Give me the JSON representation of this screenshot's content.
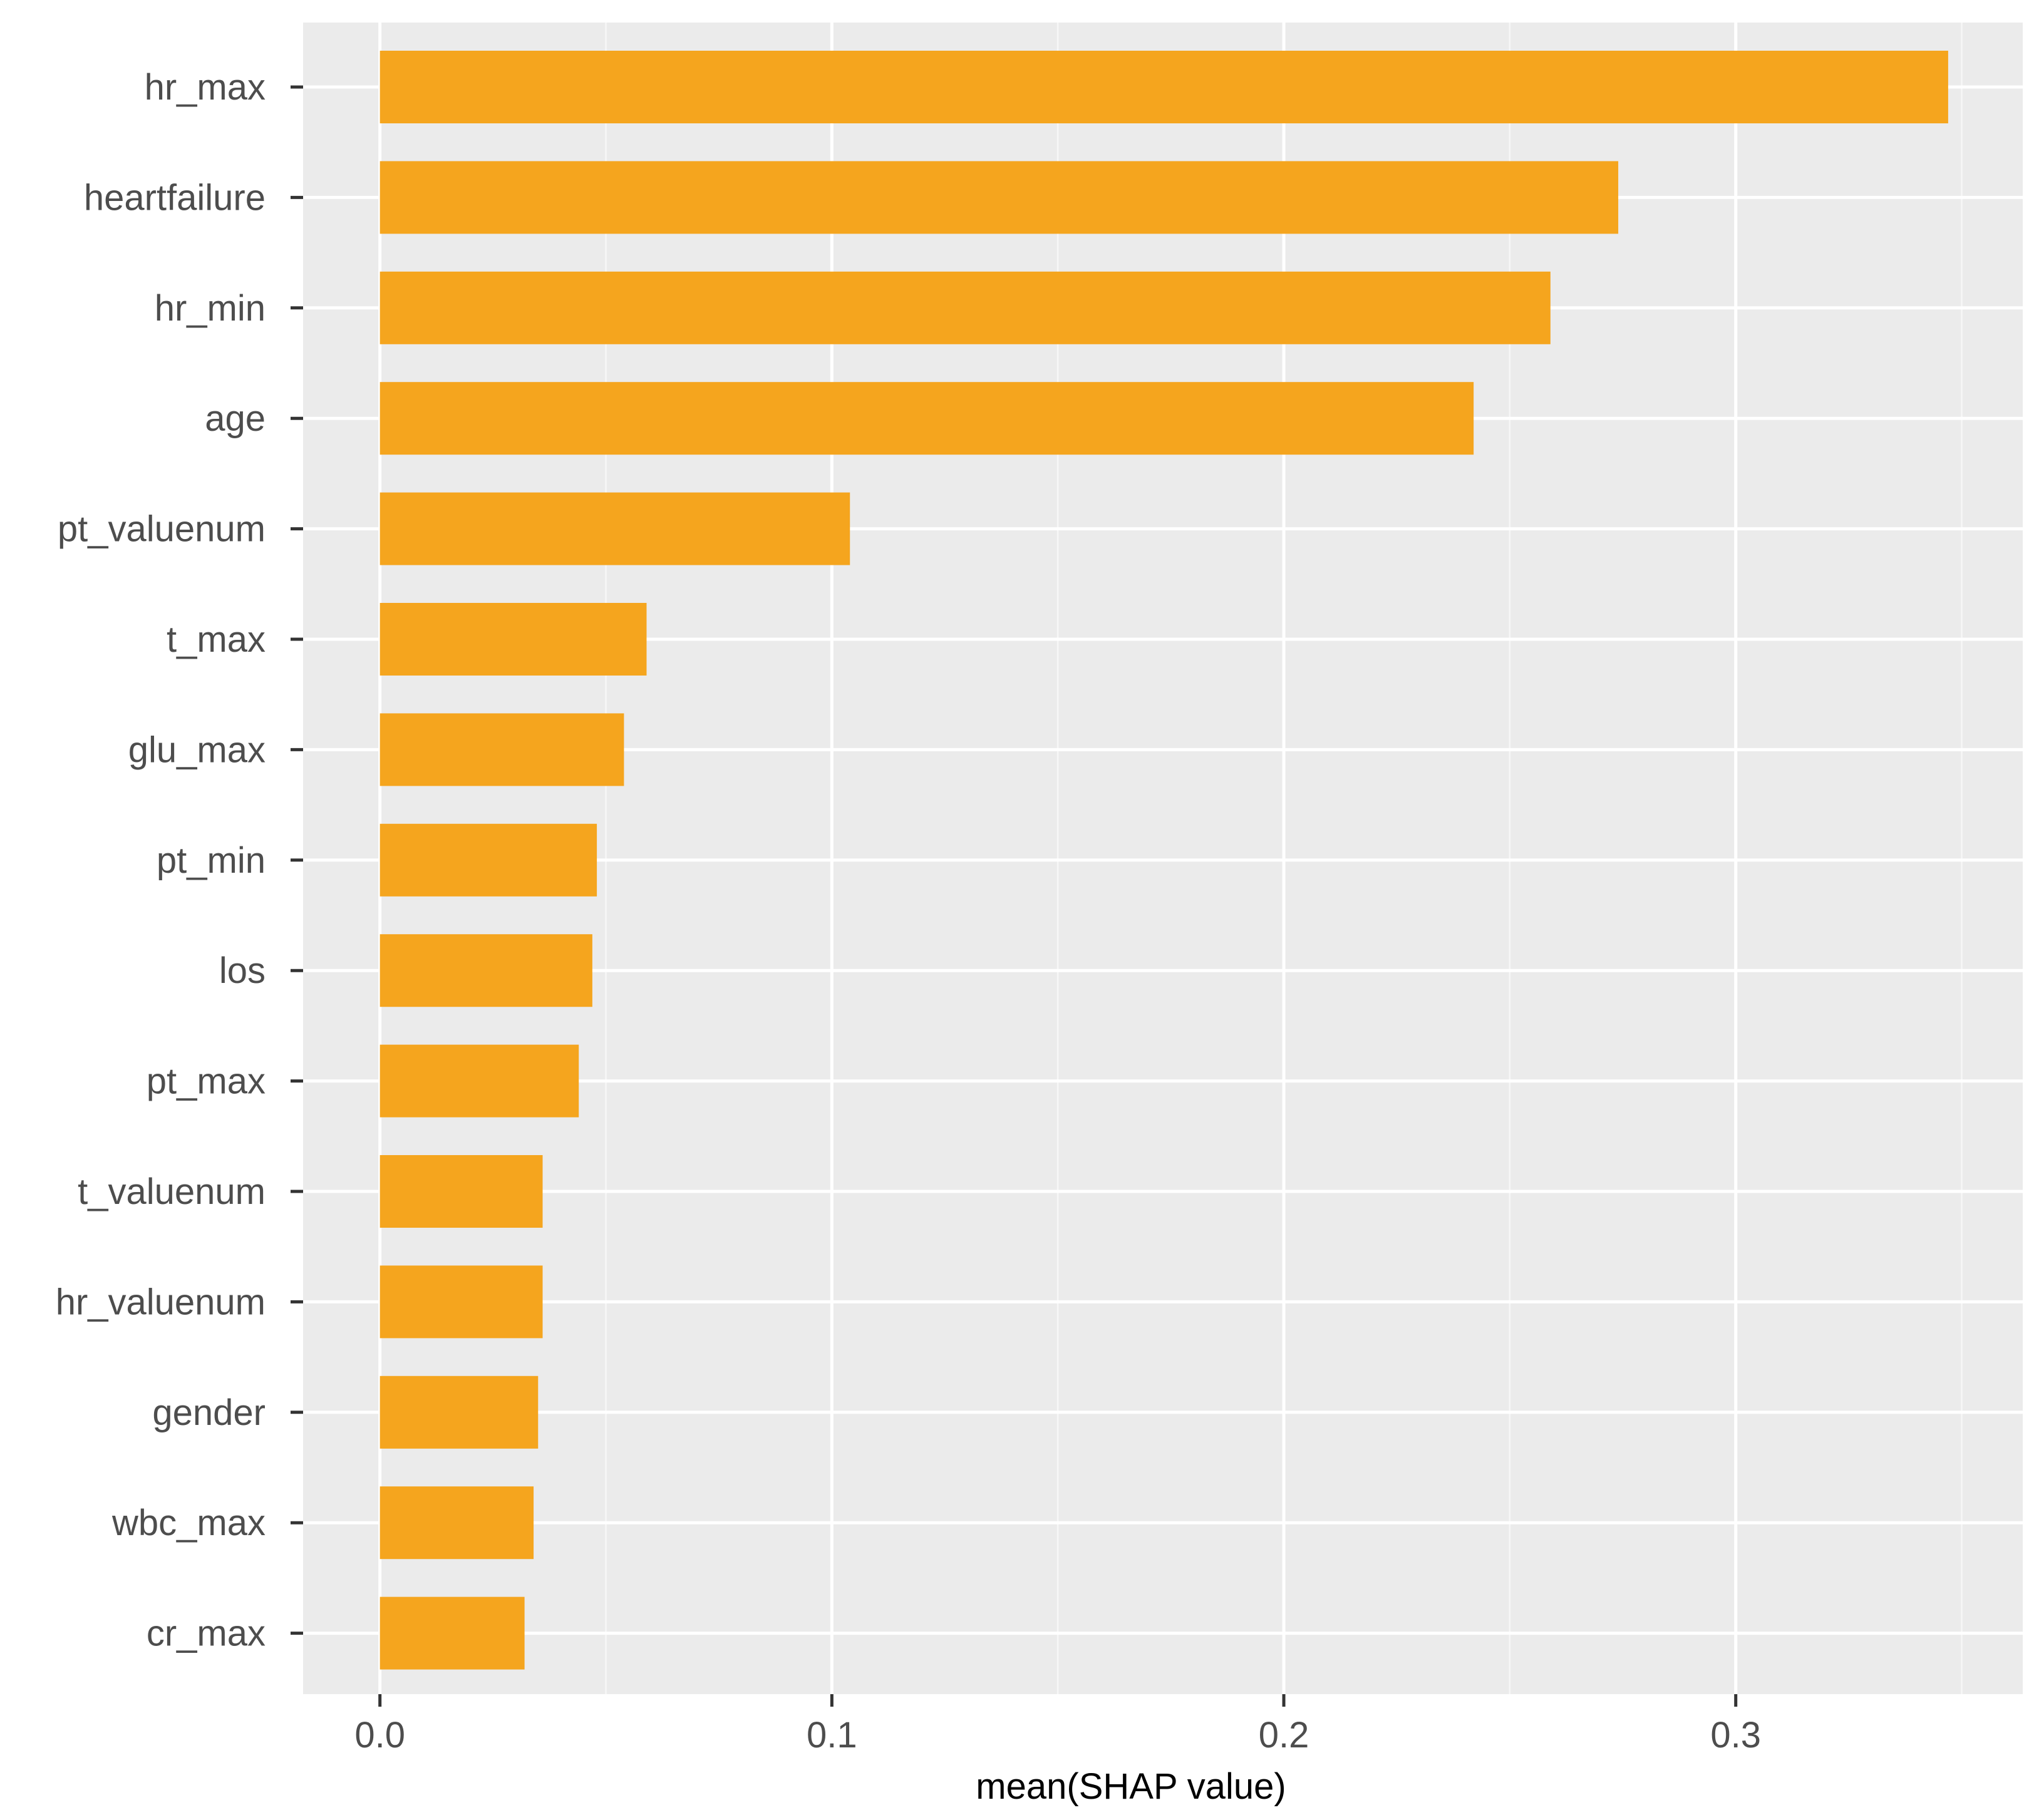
{
  "chart_data": {
    "type": "bar",
    "orientation": "horizontal",
    "categories": [
      "hr_max",
      "heartfailure",
      "hr_min",
      "age",
      "pt_valuenum",
      "t_max",
      "glu_max",
      "pt_min",
      "los",
      "pt_max",
      "t_valuenum",
      "hr_valuenum",
      "gender",
      "wbc_max",
      "cr_max"
    ],
    "values": [
      0.347,
      0.274,
      0.259,
      0.242,
      0.104,
      0.059,
      0.054,
      0.048,
      0.047,
      0.044,
      0.036,
      0.036,
      0.035,
      0.034,
      0.032
    ],
    "xlabel": "mean(SHAP value)",
    "ylabel": "",
    "title": "",
    "xlim": [
      -0.017,
      0.3635
    ],
    "x_ticks": [
      0.0,
      0.1,
      0.2,
      0.3
    ],
    "x_tick_labels": [
      "0.0",
      "0.1",
      "0.2",
      "0.3"
    ],
    "grid": true,
    "colors": {
      "bar": "#F5A51E",
      "panel_background": "#EBEBEB",
      "grid_major": "#FFFFFF",
      "grid_minor": "#F7F7F7",
      "tick_text": "#4D4D4D",
      "tick_mark": "#333333",
      "axis_title": "#000000"
    }
  }
}
